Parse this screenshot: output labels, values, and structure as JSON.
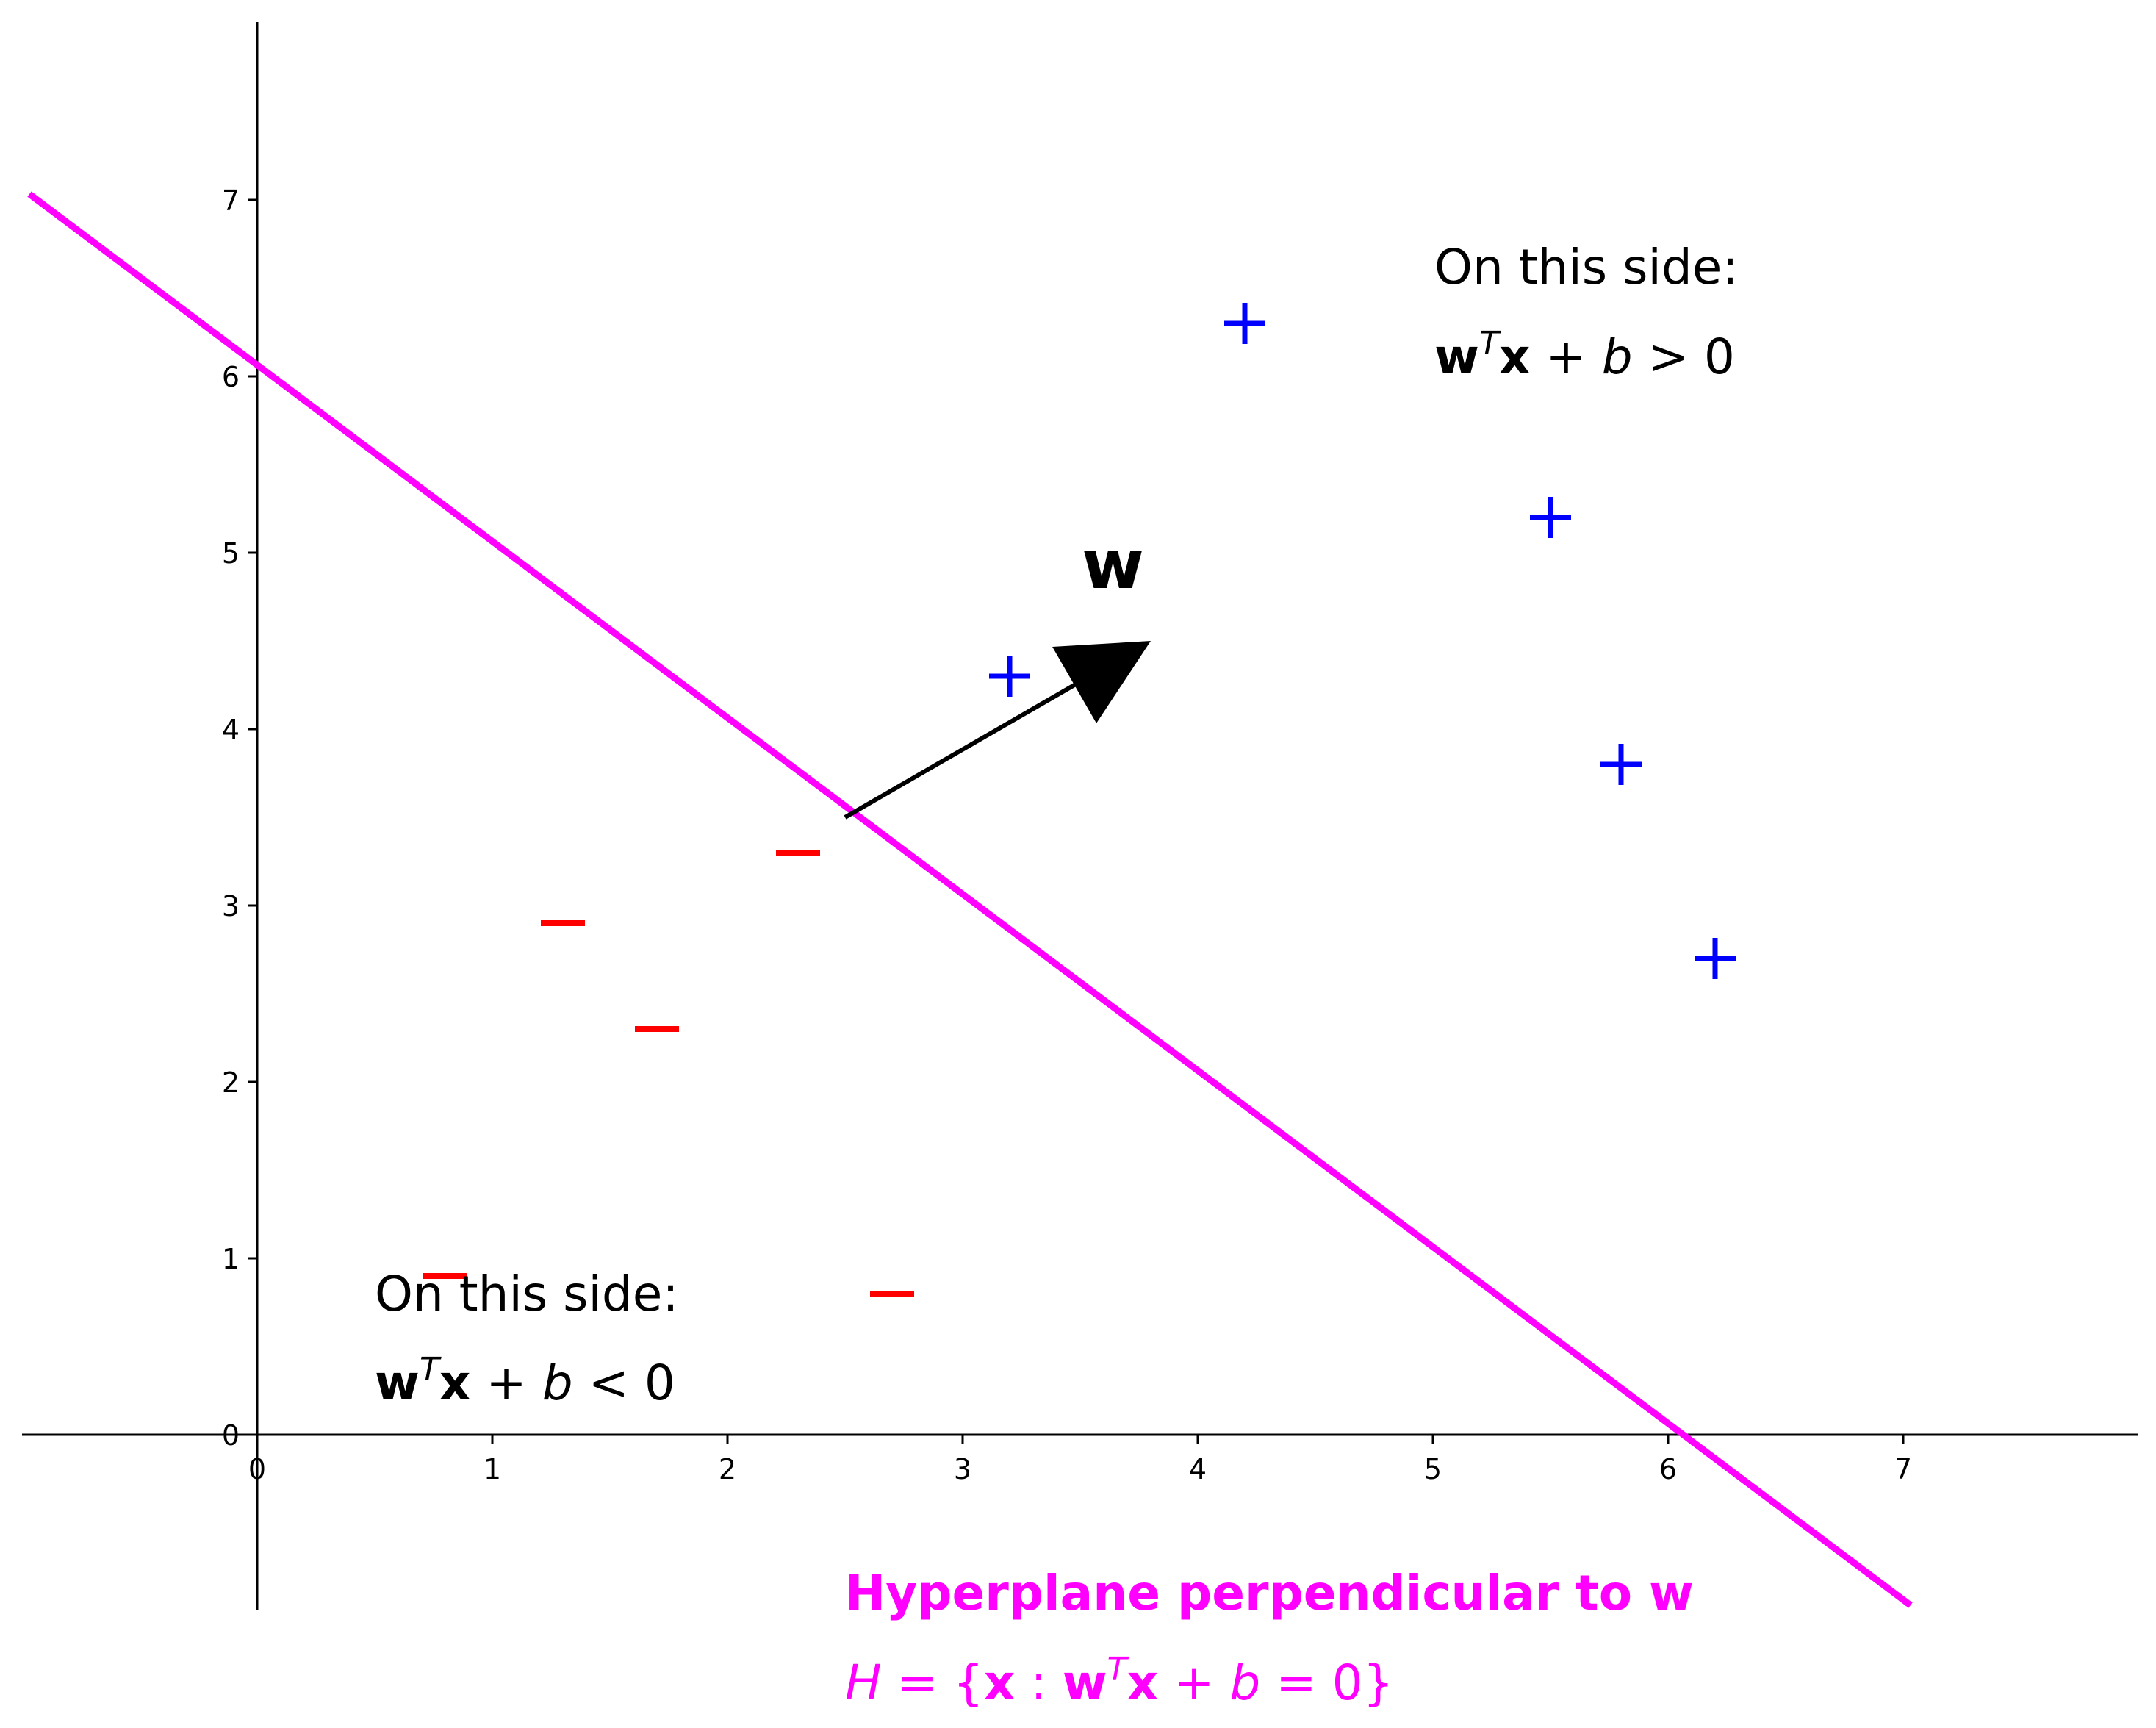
{
  "chart_data": {
    "type": "scatter",
    "xlim": [
      -1,
      8
    ],
    "ylim": [
      -1,
      8
    ],
    "x_ticks": [
      "0",
      "1",
      "2",
      "3",
      "4",
      "5",
      "6",
      "7"
    ],
    "y_ticks": [
      "0",
      "1",
      "2",
      "3",
      "4",
      "5",
      "6",
      "7"
    ],
    "grid": false,
    "series": [
      {
        "marker": "+",
        "color": "#0000ff",
        "points": [
          [
            4.2,
            6.3
          ],
          [
            5.5,
            5.2
          ],
          [
            3.2,
            4.3
          ],
          [
            5.8,
            3.8
          ],
          [
            6.2,
            2.7
          ]
        ]
      },
      {
        "marker": "−",
        "color": "#ff0000",
        "points": [
          [
            2.3,
            3.3
          ],
          [
            1.3,
            2.9
          ],
          [
            1.7,
            2.3
          ],
          [
            0.8,
            0.9
          ],
          [
            2.7,
            0.8
          ]
        ]
      }
    ],
    "hyperplane": {
      "color": "#ff00ff",
      "x": [
        -1,
        7
      ],
      "y": [
        7,
        -1
      ]
    },
    "vector": {
      "label": "w",
      "color": "#000000",
      "from": [
        2.5,
        3.5
      ],
      "to": [
        3.8,
        4.5
      ]
    },
    "annotations": {
      "positive_side_line1": "On this side:",
      "positive_side_line2": "wᵀx + b > 0",
      "negative_side_line1": "On this side:",
      "negative_side_line2": "wᵀx + b < 0",
      "hyperplane_title": "Hyperplane perpendicular to w",
      "hyperplane_formula": "H = {x : wᵀx + b = 0}"
    }
  }
}
